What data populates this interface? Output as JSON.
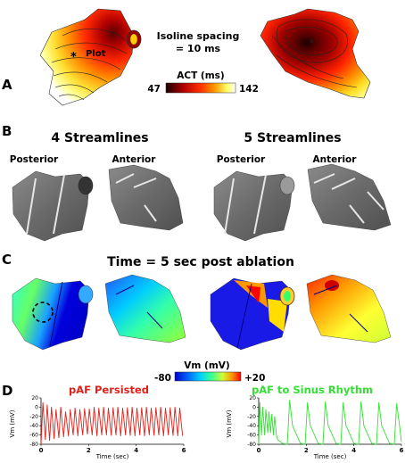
{
  "panels": {
    "a": {
      "letter": "A",
      "plot_label": "Plot",
      "isoline_text": "Isoline spacing",
      "isoline_value": "= 10 ms",
      "colorbar_title": "ACT (ms)",
      "colorbar_min": "47",
      "colorbar_max": "142",
      "colors": [
        "#1a0000",
        "#b00000",
        "#ff3300",
        "#ff9900",
        "#ffff66",
        "#ffffff"
      ]
    },
    "b": {
      "letter": "B",
      "group1_title": "4 Streamlines",
      "group2_title": "5 Streamlines",
      "view_posterior": "Posterior",
      "view_anterior": "Anterior"
    },
    "c": {
      "letter": "C",
      "title": "Time = 5 sec post ablation",
      "colorbar_title": "Vm (mV)",
      "colorbar_min": "-80",
      "colorbar_max": "+20",
      "colors": [
        "#0000c8",
        "#0066ff",
        "#00ccff",
        "#33ff99",
        "#ccff33",
        "#ff9900",
        "#ff0000"
      ]
    },
    "d": {
      "letter": "D",
      "left_title": "pAF Persisted",
      "left_title_color": "#e0201a",
      "right_title": "pAF to Sinus Rhythm",
      "right_title_color": "#33e033",
      "ylabel": "Vm (mV)",
      "xlabel": "Time (sec)",
      "yticks": [
        "20",
        "0",
        "-20",
        "-40",
        "-60",
        "-80"
      ],
      "xticks": [
        "0",
        "2",
        "4",
        "6"
      ]
    }
  },
  "chart_data": [
    {
      "type": "line",
      "title": "pAF Persisted",
      "xlabel": "Time (sec)",
      "ylabel": "Vm (mV)",
      "xlim": [
        0,
        6
      ],
      "ylim": [
        -80,
        20
      ],
      "series": [
        {
          "color": "#e0201a",
          "x": [
            0,
            0.08,
            0.18,
            0.26,
            0.36,
            0.44,
            0.55,
            0.63,
            0.75,
            0.83,
            0.95,
            1.03,
            1.15,
            1.23,
            1.35,
            1.43,
            1.55,
            1.63,
            1.75,
            1.83,
            1.95,
            2.03,
            2.15,
            2.23,
            2.35,
            2.43,
            2.55,
            2.63,
            2.75,
            2.83,
            2.95,
            3.03,
            3.15,
            3.23,
            3.35,
            3.43,
            3.55,
            3.63,
            3.75,
            3.83,
            3.95,
            4.03,
            4.15,
            4.23,
            4.35,
            4.43,
            4.55,
            4.63,
            4.75,
            4.83,
            4.95,
            5.03,
            5.15,
            5.23,
            5.35,
            5.43,
            5.55,
            5.63,
            5.75,
            5.83,
            5.95
          ],
          "y": [
            -80,
            10,
            -70,
            5,
            -72,
            0,
            -68,
            -5,
            -66,
            0,
            -64,
            -10,
            -62,
            -5,
            -60,
            -2,
            -62,
            -5,
            -60,
            -3,
            -58,
            -4,
            -60,
            0,
            -62,
            -2,
            -60,
            0,
            -60,
            -2,
            -61,
            -1,
            -60,
            0,
            -62,
            -2,
            -60,
            -1,
            -61,
            0,
            -62,
            -2,
            -60,
            -1,
            -62,
            0,
            -60,
            -2,
            -61,
            -1,
            -60,
            0,
            -62,
            -2,
            -60,
            -1,
            -61,
            0,
            -62,
            -2,
            -62
          ]
        }
      ]
    },
    {
      "type": "line",
      "title": "pAF to Sinus Rhythm",
      "xlabel": "Time (sec)",
      "ylabel": "Vm (mV)",
      "xlim": [
        0,
        6
      ],
      "ylim": [
        -80,
        20
      ],
      "series": [
        {
          "color": "#33e033",
          "x": [
            0,
            0.05,
            0.12,
            0.17,
            0.25,
            0.3,
            0.38,
            0.43,
            0.5,
            0.55,
            0.62,
            0.67,
            0.75,
            0.8,
            1.0,
            1.2,
            1.3,
            1.42,
            1.75,
            1.95,
            2.05,
            2.17,
            2.5,
            2.7,
            2.8,
            2.92,
            3.25,
            3.45,
            3.55,
            3.67,
            4.0,
            4.2,
            4.3,
            4.42,
            4.75,
            4.95,
            5.05,
            5.17,
            5.5,
            5.7,
            5.8,
            5.92,
            6.0
          ],
          "y": [
            -80,
            10,
            -60,
            0,
            -60,
            -5,
            -55,
            -10,
            -55,
            -15,
            -60,
            -20,
            -62,
            -70,
            -78,
            -80,
            15,
            -40,
            -78,
            -80,
            10,
            -40,
            -78,
            -80,
            12,
            -40,
            -78,
            -80,
            10,
            -40,
            -78,
            -80,
            12,
            -40,
            -78,
            -80,
            10,
            -40,
            -78,
            -80,
            8,
            -40,
            -75
          ]
        }
      ]
    }
  ]
}
